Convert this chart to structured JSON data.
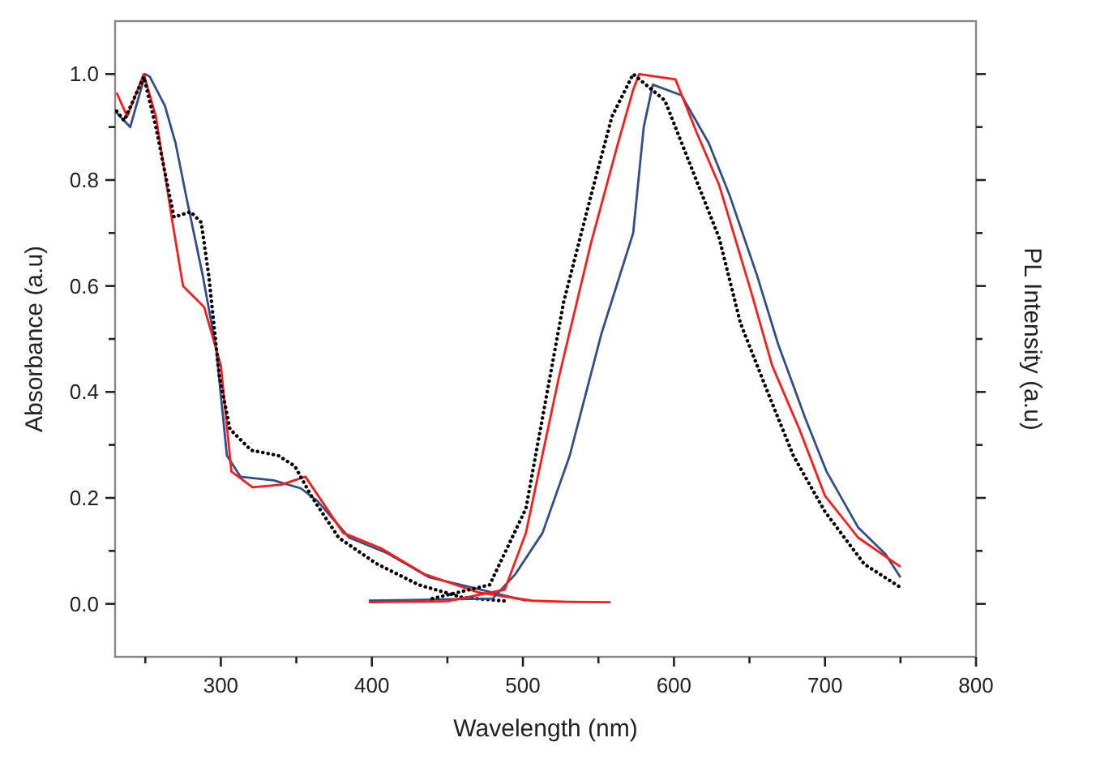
{
  "chart_data": {
    "type": "line",
    "xlabel": "Wavelength (nm)",
    "ylabel": "Absorbance (a.u)",
    "y2label": "PL Intensity (a.u)",
    "xlim": [
      230,
      800
    ],
    "ylim": [
      -0.1,
      1.1
    ],
    "xticks": [
      {
        "value": 250,
        "label": null
      },
      300,
      {
        "value": 350,
        "label": null
      },
      400,
      {
        "value": 450,
        "label": null
      },
      500,
      {
        "value": 550,
        "label": null
      },
      600,
      {
        "value": 650,
        "label": null
      },
      700,
      {
        "value": 750,
        "label": null
      },
      800
    ],
    "yticks": [
      {
        "value": 0,
        "label": "0.0"
      },
      {
        "value": 0.1,
        "label": null
      },
      {
        "value": 0.2,
        "label": "0.2"
      },
      {
        "value": 0.3,
        "label": null
      },
      {
        "value": 0.4,
        "label": "0.4"
      },
      {
        "value": 0.5,
        "label": null
      },
      {
        "value": 0.6,
        "label": "0.6"
      },
      {
        "value": 0.7,
        "label": null
      },
      {
        "value": 0.8,
        "label": "0.8"
      },
      {
        "value": 0.9,
        "label": null
      },
      {
        "value": 1.0,
        "label": "1.0"
      }
    ],
    "grid": false,
    "series": [
      {
        "color": "#2e4e8c",
        "line_style": "solid",
        "x": [
          230,
          240,
          250,
          253,
          263,
          270,
          277,
          288,
          297,
          304,
          313,
          335,
          353,
          364,
          385,
          410,
          438,
          466,
          502
        ],
        "values": [
          0.93,
          0.9,
          1.0,
          0.995,
          0.94,
          0.87,
          0.77,
          0.62,
          0.48,
          0.28,
          0.24,
          0.233,
          0.218,
          0.194,
          0.125,
          0.096,
          0.05,
          0.031,
          0.006
        ]
      },
      {
        "color": "#ff1a1a",
        "line_style": "solid",
        "x": [
          231,
          238,
          249,
          257,
          268,
          275,
          289,
          300,
          307,
          321,
          340,
          356,
          381,
          406,
          435,
          470,
          506,
          530,
          558
        ],
        "values": [
          0.965,
          0.92,
          1.0,
          0.92,
          0.72,
          0.6,
          0.56,
          0.45,
          0.25,
          0.22,
          0.225,
          0.24,
          0.134,
          0.105,
          0.056,
          0.022,
          0.006,
          0.004,
          0.003
        ]
      },
      {
        "color": "#000000",
        "line_style": "dotted",
        "x": [
          231,
          236,
          249,
          257,
          264,
          269,
          280,
          287,
          292,
          299,
          306,
          320,
          338,
          349,
          360,
          378,
          403,
          431,
          460,
          490
        ],
        "values": [
          0.93,
          0.912,
          0.995,
          0.9,
          0.8,
          0.73,
          0.74,
          0.72,
          0.62,
          0.43,
          0.33,
          0.29,
          0.28,
          0.26,
          0.203,
          0.125,
          0.076,
          0.036,
          0.012,
          0.005
        ]
      },
      {
        "color": "#2e4e8c",
        "line_style": "solid",
        "x": [
          398,
          440,
          480,
          495,
          513,
          531,
          552,
          573,
          580,
          586,
          605,
          623,
          637,
          655,
          669,
          687,
          701,
          722,
          740,
          750
        ],
        "values": [
          0.006,
          0.008,
          0.01,
          0.056,
          0.134,
          0.28,
          0.51,
          0.7,
          0.9,
          0.98,
          0.96,
          0.87,
          0.77,
          0.62,
          0.49,
          0.35,
          0.25,
          0.144,
          0.094,
          0.05
        ]
      },
      {
        "color": "#ff1a1a",
        "line_style": "solid",
        "x": [
          398,
          450,
          488,
          502,
          524,
          545,
          563,
          573,
          577,
          601,
          615,
          630,
          651,
          665,
          683,
          700,
          722,
          750
        ],
        "values": [
          0.003,
          0.005,
          0.027,
          0.134,
          0.43,
          0.68,
          0.87,
          0.97,
          1.0,
          0.99,
          0.89,
          0.79,
          0.59,
          0.45,
          0.33,
          0.204,
          0.125,
          0.07
        ]
      },
      {
        "color": "#000000",
        "line_style": "dotted",
        "x": [
          440,
          478,
          502,
          527,
          545,
          559,
          573,
          594,
          612,
          630,
          644,
          662,
          679,
          700,
          726,
          750
        ],
        "values": [
          0.01,
          0.036,
          0.18,
          0.57,
          0.77,
          0.92,
          1.0,
          0.95,
          0.82,
          0.69,
          0.53,
          0.4,
          0.28,
          0.174,
          0.075,
          0.031
        ]
      }
    ]
  }
}
